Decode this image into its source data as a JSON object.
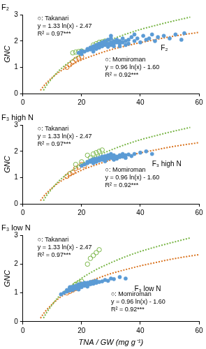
{
  "chart_data": [
    {
      "type": "scatter",
      "title": "F₂",
      "ylabel": "GNC",
      "xlim": [
        0,
        60
      ],
      "xticks": [
        0,
        20,
        40,
        60
      ],
      "ylim": [
        0,
        3
      ],
      "yticks": [
        0,
        1,
        2,
        3
      ],
      "grid": false,
      "series": [
        {
          "label": "F₂",
          "color": "#5b9bd5",
          "marker": "circle",
          "x": [
            19,
            20,
            21,
            22,
            22,
            23,
            23,
            24,
            24,
            25,
            25,
            25,
            26,
            26,
            26,
            27,
            27,
            27,
            28,
            28,
            28,
            29,
            29,
            29,
            30,
            30,
            30,
            31,
            31,
            31,
            32,
            32,
            33,
            33,
            34,
            34,
            35,
            36,
            36,
            37,
            38,
            39,
            40,
            41,
            42,
            43,
            44,
            45,
            46,
            48,
            50,
            52,
            54,
            55,
            33,
            35,
            24,
            30,
            38,
            20
          ],
          "values": [
            1.55,
            1.62,
            1.6,
            1.7,
            1.65,
            1.75,
            1.68,
            1.8,
            1.72,
            1.85,
            1.78,
            1.7,
            1.9,
            1.82,
            1.75,
            1.88,
            1.8,
            1.95,
            1.85,
            1.92,
            2.0,
            1.78,
            1.9,
            2.05,
            1.85,
            1.95,
            2.1,
            1.9,
            2.0,
            1.8,
            1.95,
            2.05,
            1.9,
            2.0,
            2.1,
            1.95,
            2.0,
            2.05,
            1.9,
            2.15,
            2.0,
            2.1,
            1.95,
            2.2,
            2.05,
            2.1,
            2.25,
            2.0,
            2.15,
            2.2,
            2.1,
            2.25,
            2.05,
            2.3,
            1.8,
            1.85,
            1.6,
            2.2,
            2.25,
            1.5
          ]
        },
        {
          "label": "○: Takanari",
          "color": "#7ab648",
          "marker": "circle_open",
          "x": [
            17,
            18,
            19,
            20,
            24,
            25,
            26,
            27,
            28
          ],
          "values": [
            1.55,
            1.58,
            1.6,
            1.62,
            1.85,
            1.9,
            1.95,
            1.97,
            2.0
          ],
          "fit": {
            "line_style": "dotted",
            "x": [
              7,
              8,
              10,
              12,
              15,
              20,
              25,
              30,
              35,
              40,
              45,
              50,
              57
            ],
            "values": [
              0.12,
              0.3,
              0.59,
              0.84,
              1.13,
              1.51,
              1.81,
              2.05,
              2.26,
              2.44,
              2.59,
              2.73,
              2.91
            ],
            "equation": "y = 1.33 ln(x) - 2.47",
            "r2": "R² = 0.97***"
          }
        },
        {
          "label": "○: Momiroman",
          "color": "#d9731f",
          "marker": "circle_open",
          "x": [
            15,
            16,
            17,
            18,
            19,
            20
          ],
          "values": [
            1.0,
            1.1,
            1.2,
            1.3,
            1.35,
            1.4
          ],
          "fit": {
            "line_style": "dotted",
            "x": [
              6,
              7,
              8,
              10,
              12,
              15,
              20,
              25,
              30,
              35,
              40,
              45,
              50,
              55,
              60
            ],
            "values": [
              0.12,
              0.27,
              0.4,
              0.61,
              0.79,
              1.0,
              1.28,
              1.49,
              1.67,
              1.81,
              1.94,
              2.05,
              2.16,
              2.25,
              2.33
            ],
            "equation": "y = 0.96 ln(x) - 1.60",
            "r2": "R² = 0.92***"
          }
        }
      ]
    },
    {
      "type": "scatter",
      "title": "F₃ high N",
      "ylabel": "GNC",
      "xlim": [
        0,
        60
      ],
      "xticks": [
        0,
        20,
        40,
        60
      ],
      "ylim": [
        0,
        3
      ],
      "yticks": [
        0,
        1,
        2,
        3
      ],
      "grid": false,
      "series": [
        {
          "label": "F₃ high N",
          "color": "#5b9bd5",
          "marker": "circle",
          "x": [
            20,
            21,
            22,
            22,
            23,
            23,
            24,
            24,
            25,
            25,
            25,
            26,
            26,
            26,
            27,
            27,
            27,
            28,
            28,
            28,
            29,
            29,
            29,
            30,
            30,
            30,
            31,
            31,
            32,
            32,
            33,
            33,
            34,
            34,
            35,
            36,
            37,
            38,
            40,
            42,
            44,
            28,
            31,
            24,
            35
          ],
          "values": [
            1.45,
            1.5,
            1.55,
            1.6,
            1.6,
            1.65,
            1.62,
            1.7,
            1.65,
            1.72,
            1.6,
            1.7,
            1.75,
            1.65,
            1.72,
            1.8,
            1.68,
            1.75,
            1.7,
            1.82,
            1.78,
            1.72,
            1.85,
            1.75,
            1.8,
            1.9,
            1.78,
            1.85,
            1.8,
            1.72,
            1.85,
            1.78,
            1.9,
            1.8,
            1.85,
            1.88,
            1.82,
            1.9,
            1.95,
            2.0,
            1.9,
            1.62,
            1.68,
            1.55,
            1.75
          ]
        },
        {
          "label": "○: Takanari",
          "color": "#7ab648",
          "marker": "circle_open",
          "x": [
            18,
            20,
            22,
            23,
            24,
            25,
            26,
            27
          ],
          "values": [
            1.5,
            1.6,
            1.85,
            1.75,
            1.9,
            1.95,
            2.0,
            2.05
          ],
          "fit": {
            "line_style": "dotted",
            "x": [
              7,
              8,
              10,
              12,
              15,
              20,
              25,
              30,
              35,
              40,
              45,
              50,
              57
            ],
            "values": [
              0.12,
              0.3,
              0.59,
              0.84,
              1.13,
              1.51,
              1.81,
              2.05,
              2.26,
              2.44,
              2.59,
              2.73,
              2.91
            ],
            "equation": "y = 1.33 ln(x) - 2.47",
            "r2": "R² = 0.97***"
          }
        },
        {
          "label": "○: Momiroman",
          "color": "#d9731f",
          "marker": "circle_open",
          "x": [
            15,
            16,
            17,
            18,
            19,
            20,
            21
          ],
          "values": [
            1.05,
            1.15,
            1.2,
            1.35,
            1.4,
            1.5,
            1.45
          ],
          "fit": {
            "line_style": "dotted",
            "x": [
              6,
              7,
              8,
              10,
              12,
              15,
              20,
              25,
              30,
              35,
              40,
              45,
              50,
              55,
              60
            ],
            "values": [
              0.12,
              0.27,
              0.4,
              0.61,
              0.79,
              1.0,
              1.28,
              1.49,
              1.67,
              1.81,
              1.94,
              2.05,
              2.16,
              2.25,
              2.33
            ],
            "equation": "y = 0.96 ln(x) - 1.60",
            "r2": "R² = 0.92***"
          }
        }
      ]
    },
    {
      "type": "scatter",
      "title": "F₃ low N",
      "ylabel": "GNC",
      "xlabel": "TNA / GW (mg g⁻¹)",
      "xlim": [
        0,
        60
      ],
      "xticks": [
        0,
        20,
        40,
        60
      ],
      "ylim": [
        0,
        3
      ],
      "yticks": [
        0,
        1,
        2,
        3
      ],
      "grid": false,
      "series": [
        {
          "label": "F₃ low N",
          "color": "#5b9bd5",
          "marker": "circle",
          "x": [
            13,
            14,
            15,
            15,
            16,
            16,
            17,
            17,
            17,
            18,
            18,
            18,
            19,
            19,
            19,
            20,
            20,
            20,
            21,
            21,
            21,
            22,
            22,
            23,
            23,
            24,
            24,
            25,
            25,
            26,
            27,
            28,
            29,
            30,
            31,
            33,
            35,
            16,
            19,
            22
          ],
          "values": [
            0.95,
            1.0,
            1.05,
            1.1,
            1.08,
            1.15,
            1.1,
            1.18,
            1.22,
            1.15,
            1.2,
            1.25,
            1.18,
            1.25,
            1.3,
            1.2,
            1.28,
            1.32,
            1.25,
            1.3,
            1.35,
            1.28,
            1.35,
            1.3,
            1.38,
            1.32,
            1.4,
            1.35,
            1.42,
            1.38,
            1.4,
            1.45,
            1.42,
            1.5,
            1.48,
            1.55,
            1.5,
            1.2,
            1.12,
            1.22
          ]
        },
        {
          "label": "○: Takanari",
          "color": "#7ab648",
          "marker": "circle_open",
          "x": [
            18,
            19,
            20,
            22,
            23,
            24,
            25,
            26
          ],
          "values": [
            1.3,
            1.35,
            1.4,
            2.0,
            2.2,
            2.3,
            2.4,
            2.5
          ],
          "fit": {
            "line_style": "dotted",
            "x": [
              7,
              8,
              10,
              12,
              15,
              20,
              25,
              30,
              35,
              40,
              45,
              50,
              57
            ],
            "values": [
              0.12,
              0.3,
              0.59,
              0.84,
              1.13,
              1.51,
              1.81,
              2.05,
              2.26,
              2.44,
              2.59,
              2.73,
              2.91
            ],
            "equation": "y = 1.33 ln(x) - 2.47",
            "r2": "R² = 0.97***"
          }
        },
        {
          "label": "○: Momiroman",
          "color": "#d9731f",
          "marker": "circle_open",
          "x": [
            15,
            16,
            17,
            18,
            19,
            20
          ],
          "values": [
            1.0,
            1.05,
            1.1,
            1.15,
            1.25,
            1.3
          ],
          "fit": {
            "line_style": "dotted",
            "x": [
              6,
              7,
              8,
              10,
              12,
              15,
              20,
              25,
              30,
              35,
              40,
              45,
              50,
              55,
              60
            ],
            "values": [
              0.12,
              0.27,
              0.4,
              0.61,
              0.79,
              1.0,
              1.28,
              1.49,
              1.67,
              1.81,
              1.94,
              2.05,
              2.16,
              2.25,
              2.33
            ],
            "equation": "y = 0.96 ln(x) - 1.60",
            "r2": "R² = 0.92***"
          }
        }
      ]
    }
  ]
}
